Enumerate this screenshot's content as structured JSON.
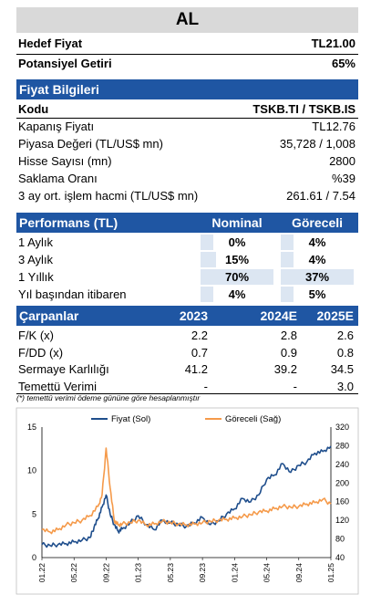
{
  "rating": "AL",
  "summary": [
    {
      "label": "Hedef Fiyat",
      "value": "TL21.00"
    },
    {
      "label": "Potansiyel Getiri",
      "value": "65%"
    }
  ],
  "price_info": {
    "header": "Fiyat Bilgileri",
    "rows": [
      {
        "label": "Kodu",
        "value": "TSKB.TI / TSKB.IS",
        "bold": true
      },
      {
        "label": "Kapanış Fiyatı",
        "value": "TL12.76"
      },
      {
        "label": "Piyasa Değeri (TL/US$ mn)",
        "value": "35,728 / 1,008"
      },
      {
        "label": "Hisse Sayısı (mn)",
        "value": "2800"
      },
      {
        "label": "Saklama Oranı",
        "value": "%39"
      },
      {
        "label": "3 ay ort. işlem hacmi (TL/US$ mn)",
        "value": "261.61 / 7.54"
      }
    ]
  },
  "performance": {
    "header": "Performans (TL)",
    "col1": "Nominal",
    "col2": "Göreceli",
    "rows": [
      {
        "label": "1 Aylık",
        "nominal": "0%",
        "relative": "4%",
        "nominal_level": 0,
        "relative_level": 0.11
      },
      {
        "label": "3 Aylık",
        "nominal": "15%",
        "relative": "4%",
        "nominal_level": 0.21,
        "relative_level": 0.11
      },
      {
        "label": "1 Yıllık",
        "nominal": "70%",
        "relative": "37%",
        "nominal_level": 1,
        "relative_level": 1
      },
      {
        "label": "Yıl başından itibaren",
        "nominal": "4%",
        "relative": "5%",
        "nominal_level": 0.06,
        "relative_level": 0.14
      }
    ]
  },
  "multiples": {
    "header": "Çarpanlar",
    "years": [
      "2023",
      "2024E",
      "2025E"
    ],
    "rows": [
      {
        "label": "F/K (x)",
        "values": [
          "2.2",
          "2.8",
          "2.6"
        ]
      },
      {
        "label": "F/DD (x)",
        "values": [
          "0.7",
          "0.9",
          "0.8"
        ]
      },
      {
        "label": "Sermaye Karlılığı",
        "values": [
          "41.2",
          "39.2",
          "34.5"
        ]
      },
      {
        "label": "Temettü Verimi",
        "values": [
          "-",
          "-",
          "3.0"
        ]
      }
    ]
  },
  "footnote": "(*) temettü verimi ödeme gününe göre hesaplanmıştır",
  "chart_data": {
    "type": "line",
    "title": "",
    "xlabel": "",
    "ylabel": "",
    "x_ticks": [
      "01.22",
      "05.22",
      "09.22",
      "01.23",
      "05.23",
      "09.23",
      "01.24",
      "05.24",
      "09.24",
      "01.25"
    ],
    "y_left": {
      "min": 0,
      "max": 15,
      "ticks": [
        0,
        5,
        10,
        15
      ]
    },
    "y_right": {
      "min": 40,
      "max": 320,
      "ticks": [
        40,
        80,
        120,
        160,
        200,
        240,
        280,
        320
      ]
    },
    "legend_position": "top",
    "grid": false,
    "series": [
      {
        "name": "Fiyat (Sol)",
        "axis": "left",
        "color": "#1f4e8c",
        "x": [
          "01.22",
          "02.22",
          "03.22",
          "04.22",
          "05.22",
          "06.22",
          "07.22",
          "07.22",
          "08.22",
          "08.22",
          "09.22",
          "09.22",
          "10.22",
          "10.22",
          "11.22",
          "12.22",
          "01.23",
          "02.23",
          "03.23",
          "04.23",
          "05.23",
          "06.23",
          "07.23",
          "08.23",
          "09.23",
          "10.23",
          "11.23",
          "12.23",
          "01.24",
          "02.24",
          "03.24",
          "04.24",
          "05.24",
          "06.24",
          "07.24",
          "08.24",
          "09.24",
          "10.24",
          "11.24",
          "12.24",
          "01.25"
        ],
        "values": [
          1.5,
          1.4,
          1.5,
          1.6,
          1.8,
          2.0,
          2.3,
          3.5,
          4.5,
          5.8,
          7.2,
          5.0,
          3.8,
          3.0,
          3.3,
          4.0,
          4.8,
          3.8,
          3.2,
          4.3,
          4.0,
          3.8,
          3.6,
          4.0,
          4.6,
          3.8,
          4.2,
          5.0,
          5.6,
          6.8,
          6.4,
          7.2,
          9.0,
          9.5,
          10.8,
          9.8,
          10.6,
          11.0,
          12.0,
          12.2,
          12.8
        ]
      },
      {
        "name": "Göreceli (Sağ)",
        "axis": "right",
        "color": "#f59a4a",
        "x": [
          "01.22",
          "02.22",
          "03.22",
          "04.22",
          "05.22",
          "06.22",
          "07.22",
          "08.22",
          "08.22",
          "09.22",
          "09.22",
          "10.22",
          "10.22",
          "11.22",
          "12.22",
          "01.23",
          "02.23",
          "03.23",
          "04.23",
          "05.23",
          "06.23",
          "07.23",
          "08.23",
          "09.23",
          "10.23",
          "11.23",
          "12.23",
          "01.24",
          "02.24",
          "03.24",
          "04.24",
          "05.24",
          "06.24",
          "07.24",
          "08.24",
          "09.24",
          "10.24",
          "11.24",
          "12.24",
          "01.25"
        ],
        "values": [
          100,
          95,
          100,
          110,
          115,
          120,
          130,
          150,
          175,
          275,
          190,
          120,
          110,
          112,
          115,
          120,
          110,
          112,
          118,
          115,
          112,
          110,
          112,
          115,
          118,
          120,
          122,
          125,
          128,
          132,
          138,
          140,
          145,
          150,
          148,
          150,
          155,
          158,
          165,
          155
        ]
      }
    ]
  }
}
